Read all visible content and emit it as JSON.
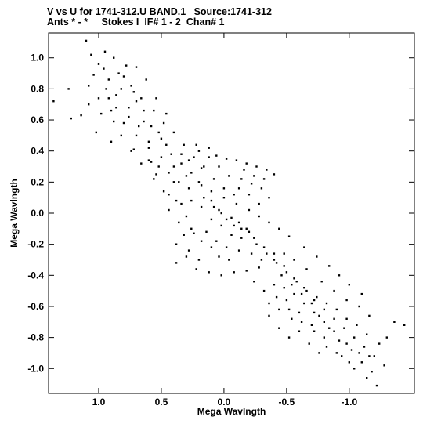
{
  "header": {
    "line1": "V vs U for 1741-312.U BAND.1   Source:1741-312",
    "line2": "Ants * - *     Stokes I  IF# 1 - 2  Chan# 1"
  },
  "chart_data": {
    "type": "scatter",
    "xlabel": "Mega Wavlngth",
    "ylabel": "Mega Wavlngth",
    "xlim": [
      1.4,
      -1.52
    ],
    "ylim": [
      -1.16,
      1.16
    ],
    "x_reversed": true,
    "grid": false,
    "marker_color": "#000000",
    "x_ticks": [
      {
        "value": 1.0,
        "label": "1.0"
      },
      {
        "value": 0.5,
        "label": "0.5"
      },
      {
        "value": 0.0,
        "label": "0.0"
      },
      {
        "value": -0.5,
        "label": "-0.5"
      },
      {
        "value": -1.0,
        "label": "-1.0"
      }
    ],
    "y_ticks": [
      {
        "value": 1.0,
        "label": "1.0"
      },
      {
        "value": 0.8,
        "label": "0.8"
      },
      {
        "value": 0.6,
        "label": "0.6"
      },
      {
        "value": 0.4,
        "label": "0.4"
      },
      {
        "value": 0.2,
        "label": "0.2"
      },
      {
        "value": 0.0,
        "label": "0.0"
      },
      {
        "value": -0.2,
        "label": "-0.2"
      },
      {
        "value": -0.4,
        "label": "-0.4"
      },
      {
        "value": -0.6,
        "label": "-0.6"
      },
      {
        "value": -0.8,
        "label": "-0.8"
      },
      {
        "value": -1.0,
        "label": "-1.0"
      }
    ],
    "points": [
      [
        1.36,
        0.72
      ],
      [
        1.24,
        0.8
      ],
      [
        1.22,
        0.61
      ],
      [
        1.14,
        0.63
      ],
      [
        1.1,
        1.11
      ],
      [
        1.06,
        1.02
      ],
      [
        1.04,
        0.89
      ],
      [
        0.95,
        1.04
      ],
      [
        0.92,
        0.86
      ],
      [
        0.88,
        0.59
      ],
      [
        1.02,
        0.52
      ],
      [
        0.9,
        0.46
      ],
      [
        0.82,
        0.8
      ],
      [
        0.76,
        0.68
      ],
      [
        0.72,
        0.41
      ],
      [
        0.64,
        0.59
      ],
      [
        0.58,
        0.33
      ],
      [
        0.52,
        0.52
      ],
      [
        0.46,
        0.44
      ],
      [
        0.4,
        0.2
      ],
      [
        0.96,
        0.93
      ],
      [
        0.86,
        0.76
      ],
      [
        0.78,
        0.95
      ],
      [
        0.7,
        0.72
      ],
      [
        0.6,
        0.46
      ],
      [
        0.54,
        0.25
      ],
      [
        0.44,
        0.12
      ],
      [
        0.34,
        0.38
      ],
      [
        0.28,
        0.16
      ],
      [
        0.18,
        0.29
      ],
      [
        0.22,
        0.44
      ],
      [
        0.12,
        0.42
      ],
      [
        0.06,
        0.37
      ],
      [
        -0.02,
        0.35
      ],
      [
        -0.1,
        0.34
      ],
      [
        -0.18,
        0.32
      ],
      [
        -0.26,
        0.3
      ],
      [
        -0.34,
        0.28
      ],
      [
        -0.4,
        0.25
      ],
      [
        -0.14,
        0.22
      ],
      [
        -0.22,
        0.19
      ],
      [
        -0.3,
        0.16
      ],
      [
        0.38,
        -0.32
      ],
      [
        0.3,
        -0.28
      ],
      [
        0.22,
        -0.36
      ],
      [
        0.12,
        -0.38
      ],
      [
        0.02,
        -0.4
      ],
      [
        -0.08,
        -0.38
      ],
      [
        -0.18,
        -0.37
      ],
      [
        -0.28,
        -0.35
      ],
      [
        -0.4,
        -0.3
      ],
      [
        0.3,
        -0.02
      ],
      [
        0.24,
        -0.13
      ],
      [
        0.34,
        0.06
      ],
      [
        0.16,
        0.1
      ],
      [
        0.08,
        0.04
      ],
      [
        0.02,
        0.0
      ],
      [
        -0.06,
        -0.03
      ],
      [
        -0.12,
        -0.06
      ],
      [
        -0.18,
        -0.1
      ],
      [
        -0.24,
        -0.16
      ],
      [
        -0.32,
        -0.22
      ],
      [
        -0.4,
        -0.26
      ],
      [
        -0.48,
        -0.34
      ],
      [
        -0.56,
        -0.42
      ],
      [
        -0.64,
        -0.48
      ],
      [
        -0.72,
        -0.56
      ],
      [
        -0.8,
        -0.62
      ],
      [
        -0.88,
        -0.68
      ],
      [
        -0.96,
        -0.74
      ],
      [
        -1.04,
        -0.8
      ],
      [
        -1.12,
        -0.86
      ],
      [
        -1.2,
        -0.92
      ],
      [
        -1.28,
        -0.98
      ],
      [
        -1.22,
        -1.11
      ],
      [
        -1.18,
        -1.02
      ],
      [
        -1.1,
        -0.96
      ],
      [
        -1.02,
        -0.88
      ],
      [
        -0.92,
        -0.82
      ],
      [
        -0.84,
        -0.74
      ],
      [
        -0.76,
        -0.66
      ],
      [
        -0.7,
        -0.58
      ],
      [
        -0.62,
        -0.52
      ],
      [
        -0.54,
        -0.46
      ],
      [
        -0.46,
        -0.4
      ],
      [
        -0.4,
        -0.46
      ],
      [
        -0.5,
        -0.56
      ],
      [
        -0.6,
        -0.64
      ],
      [
        -0.7,
        -0.72
      ],
      [
        -0.8,
        -0.8
      ],
      [
        -0.9,
        -0.9
      ],
      [
        -1.0,
        -0.96
      ],
      [
        -1.3,
        -0.8
      ],
      [
        -1.36,
        -0.7
      ],
      [
        -1.44,
        -0.72
      ],
      [
        -1.16,
        -0.66
      ],
      [
        -1.08,
        -0.6
      ],
      [
        -0.98,
        -0.56
      ],
      [
        -0.88,
        -0.5
      ],
      [
        -0.78,
        -0.44
      ],
      [
        -0.66,
        -0.36
      ],
      [
        -0.56,
        -0.3
      ],
      [
        -0.48,
        -0.26
      ],
      [
        -0.52,
        -0.15
      ],
      [
        -0.44,
        -0.1
      ],
      [
        -0.36,
        -0.06
      ],
      [
        -0.28,
        -0.02
      ],
      [
        -0.2,
        0.02
      ],
      [
        -0.1,
        0.06
      ],
      [
        0.0,
        0.1
      ],
      [
        0.1,
        0.14
      ],
      [
        0.2,
        0.2
      ],
      [
        0.3,
        0.24
      ],
      [
        0.4,
        0.3
      ],
      [
        0.5,
        0.36
      ],
      [
        0.6,
        0.42
      ],
      [
        0.7,
        0.5
      ],
      [
        0.8,
        0.58
      ],
      [
        0.9,
        0.66
      ],
      [
        1.0,
        0.74
      ],
      [
        1.08,
        0.82
      ],
      [
        0.84,
        0.9
      ],
      [
        0.74,
        0.82
      ],
      [
        0.66,
        0.74
      ],
      [
        0.56,
        0.66
      ],
      [
        0.48,
        0.58
      ],
      [
        0.4,
        0.52
      ],
      [
        0.32,
        0.44
      ],
      [
        0.24,
        0.36
      ],
      [
        0.16,
        0.3
      ],
      [
        0.08,
        0.22
      ],
      [
        0.0,
        0.16
      ],
      [
        -0.08,
        0.12
      ],
      [
        0.44,
        0.02
      ],
      [
        0.36,
        -0.06
      ],
      [
        0.26,
        -0.1
      ],
      [
        0.18,
        -0.18
      ],
      [
        0.1,
        -0.22
      ],
      [
        0.04,
        -0.28
      ],
      [
        -0.04,
        -0.3
      ],
      [
        -0.12,
        -0.24
      ],
      [
        -0.06,
        -0.14
      ],
      [
        0.02,
        -0.08
      ],
      [
        0.1,
        -0.04
      ],
      [
        0.18,
        0.04
      ],
      [
        0.26,
        0.08
      ],
      [
        -0.24,
        -0.44
      ],
      [
        -0.32,
        -0.5
      ],
      [
        -0.36,
        -0.58
      ],
      [
        -0.44,
        -0.62
      ],
      [
        -0.54,
        -0.68
      ],
      [
        -0.6,
        -0.76
      ],
      [
        -0.68,
        -0.84
      ],
      [
        -0.76,
        -0.9
      ],
      [
        -0.52,
        -0.8
      ],
      [
        -0.44,
        -0.74
      ],
      [
        -0.36,
        -0.66
      ],
      [
        -0.92,
        -0.4
      ],
      [
        -1.0,
        -0.46
      ],
      [
        -1.1,
        -0.52
      ],
      [
        -0.84,
        -0.34
      ],
      [
        -0.74,
        -0.28
      ],
      [
        -0.64,
        -0.22
      ],
      [
        0.46,
        0.64
      ],
      [
        0.54,
        0.74
      ],
      [
        0.62,
        0.86
      ],
      [
        0.7,
        0.94
      ],
      [
        0.92,
        0.74
      ],
      [
        0.98,
        0.64
      ],
      [
        1.08,
        0.7
      ],
      [
        0.82,
        0.5
      ],
      [
        0.74,
        0.4
      ],
      [
        0.66,
        0.32
      ],
      [
        0.56,
        0.22
      ],
      [
        0.48,
        0.14
      ],
      [
        0.38,
        0.08
      ],
      [
        0.32,
        -0.14
      ],
      [
        0.38,
        -0.2
      ],
      [
        0.28,
        -0.24
      ],
      [
        0.2,
        -0.3
      ],
      [
        0.14,
        -0.12
      ],
      [
        0.06,
        -0.18
      ],
      [
        -0.02,
        -0.22
      ],
      [
        -0.14,
        -0.16
      ],
      [
        -0.22,
        -0.26
      ],
      [
        -0.3,
        -0.3
      ],
      [
        -0.16,
        0.28
      ],
      [
        -0.24,
        0.24
      ],
      [
        -0.32,
        0.22
      ],
      [
        -0.36,
        0.1
      ],
      [
        -0.28,
        0.06
      ],
      [
        -0.2,
        0.12
      ],
      [
        -0.12,
        0.16
      ],
      [
        -0.04,
        0.24
      ],
      [
        0.04,
        0.3
      ],
      [
        0.12,
        0.36
      ],
      [
        0.2,
        0.4
      ],
      [
        0.28,
        0.34
      ],
      [
        0.36,
        0.2
      ],
      [
        0.44,
        0.26
      ],
      [
        0.52,
        0.3
      ],
      [
        0.6,
        0.34
      ],
      [
        0.68,
        0.56
      ],
      [
        0.76,
        0.62
      ],
      [
        0.86,
        0.68
      ],
      [
        0.94,
        0.8
      ],
      [
        1.0,
        0.96
      ],
      [
        0.88,
        1.0
      ],
      [
        0.8,
        0.88
      ],
      [
        0.72,
        0.78
      ],
      [
        0.64,
        0.66
      ],
      [
        0.58,
        0.56
      ],
      [
        0.5,
        0.48
      ],
      [
        0.42,
        0.38
      ],
      [
        0.34,
        0.32
      ],
      [
        0.26,
        0.26
      ],
      [
        0.18,
        0.18
      ],
      [
        0.1,
        0.08
      ],
      [
        0.04,
        0.02
      ],
      [
        -0.02,
        -0.04
      ],
      [
        -0.08,
        -0.08
      ],
      [
        -0.14,
        -0.1
      ],
      [
        -0.2,
        -0.12
      ],
      [
        -0.26,
        -0.2
      ],
      [
        -0.34,
        -0.26
      ],
      [
        -0.42,
        -0.32
      ],
      [
        -0.5,
        -0.38
      ],
      [
        -0.58,
        -0.44
      ],
      [
        -0.66,
        -0.5
      ],
      [
        -0.74,
        -0.54
      ],
      [
        -0.82,
        -0.58
      ],
      [
        -0.9,
        -0.62
      ],
      [
        -0.98,
        -0.68
      ],
      [
        -1.06,
        -0.72
      ],
      [
        -1.14,
        -0.78
      ],
      [
        -1.24,
        -0.84
      ],
      [
        -1.16,
        -0.92
      ],
      [
        -1.08,
        -0.9
      ],
      [
        -0.98,
        -0.84
      ],
      [
        -0.88,
        -0.76
      ],
      [
        -0.8,
        -0.7
      ],
      [
        -0.72,
        -0.64
      ],
      [
        -0.64,
        -0.58
      ],
      [
        -0.56,
        -0.52
      ],
      [
        -0.48,
        -0.48
      ],
      [
        -0.42,
        -0.54
      ],
      [
        -0.52,
        -0.62
      ],
      [
        -0.62,
        -0.7
      ],
      [
        -0.72,
        -0.76
      ],
      [
        -0.82,
        -0.86
      ],
      [
        -0.94,
        -0.92
      ],
      [
        -1.04,
        -1.0
      ],
      [
        -1.14,
        -1.06
      ]
    ]
  }
}
